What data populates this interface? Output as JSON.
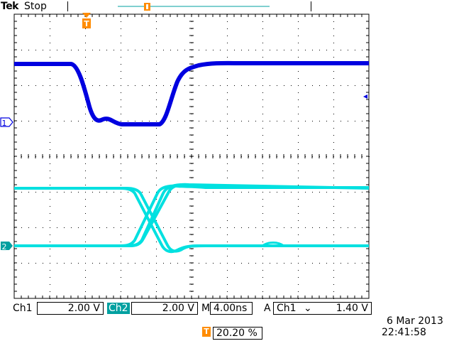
{
  "header": {
    "brand": "Tek",
    "status": "Stop"
  },
  "channels": {
    "ch1": {
      "name": "Ch1",
      "scale": "2.00 V",
      "marker": "1",
      "color": "#0000e0"
    },
    "ch2": {
      "name": "Ch2",
      "scale": "2.00 V",
      "marker": "2",
      "color": "#00e0e0"
    }
  },
  "timebase": {
    "label": "M",
    "value": "4.00ns"
  },
  "trigger": {
    "mode": "A",
    "source": "Ch1",
    "slope_icon": "falling-edge-icon",
    "slope_glyph": "⌄",
    "level": "1.40 V",
    "marker": "T",
    "color": "#ff8c00"
  },
  "trigger_position": {
    "value": "20.20 %"
  },
  "datetime": {
    "date": "6 Mar  2013",
    "time": "22:41:58"
  }
}
